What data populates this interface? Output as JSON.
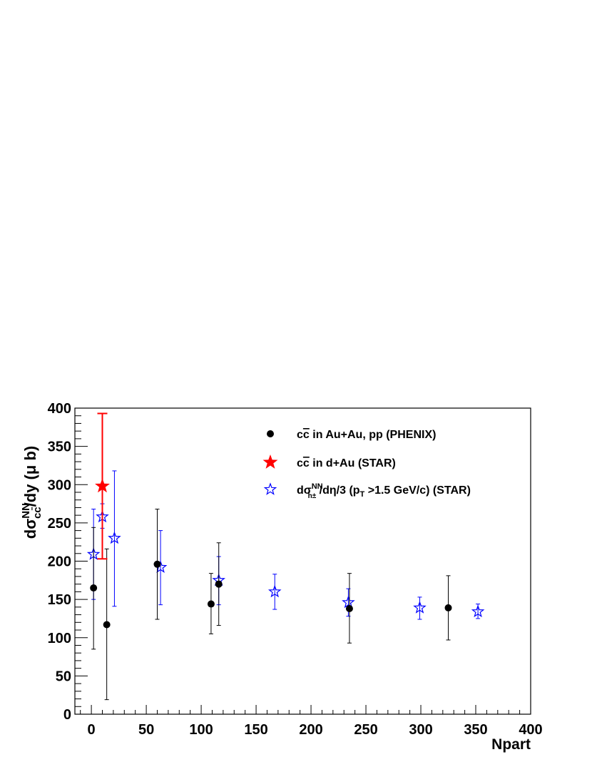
{
  "chart_data": {
    "type": "scatter",
    "xlabel": "Npart",
    "ylabel": "dσ^NN_cc̄/dy (μ b)",
    "ylabel_parts": {
      "prefix": "dσ",
      "sup": "NN",
      "sub": "cc̄",
      "suffix": "/dy (μ b)"
    },
    "xlim": [
      -15,
      400
    ],
    "ylim": [
      0,
      400
    ],
    "x_ticks": [
      0,
      50,
      100,
      150,
      200,
      250,
      300,
      350,
      400
    ],
    "y_ticks": [
      0,
      50,
      100,
      150,
      200,
      250,
      300,
      350,
      400
    ],
    "grid": false,
    "legend_position": "top-right",
    "series": [
      {
        "name": "cc̄ in Au+Au, pp (PHENIX)",
        "name_parts": {
          "c1": "c",
          "c2": "c",
          "rest": " in Au+Au, pp (PHENIX)"
        },
        "marker": "filled-circle",
        "color": "#000000",
        "points": [
          {
            "x": 2,
            "y": 165,
            "ylow": 85,
            "yhigh": 244
          },
          {
            "x": 14,
            "y": 117,
            "ylow": 19,
            "yhigh": 216
          },
          {
            "x": 60,
            "y": 196,
            "ylow": 124,
            "yhigh": 268
          },
          {
            "x": 109,
            "y": 144,
            "ylow": 105,
            "yhigh": 184
          },
          {
            "x": 116,
            "y": 170,
            "ylow": 116,
            "yhigh": 224
          },
          {
            "x": 235,
            "y": 138,
            "ylow": 93,
            "yhigh": 184
          },
          {
            "x": 325,
            "y": 139,
            "ylow": 97,
            "yhigh": 181
          }
        ]
      },
      {
        "name": "cc̄ in d+Au (STAR)",
        "name_parts": {
          "c1": "c",
          "c2": "c",
          "rest": " in d+Au (STAR)"
        },
        "marker": "filled-star",
        "color": "#ff0000",
        "points": [
          {
            "x": 10,
            "y": 298,
            "ylow": 203,
            "yhigh": 393
          }
        ]
      },
      {
        "name": "dσ^NN_h±/dη/3 (p_T >1.5 GeV/c) (STAR)",
        "name_parts": {
          "d": "dσ",
          "sup": "NN",
          "sub": "h±",
          "mid": " /dη/3 (p",
          "ptsub": "T",
          "rest": " >1.5 GeV/c) (STAR)"
        },
        "marker": "open-star",
        "color": "#0000ff",
        "points": [
          {
            "x": 2,
            "y": 209,
            "ylow": 150,
            "yhigh": 268
          },
          {
            "x": 10,
            "y": 258,
            "ylow": 243,
            "yhigh": 275
          },
          {
            "x": 21,
            "y": 230,
            "ylow": 141,
            "yhigh": 318
          },
          {
            "x": 63,
            "y": 192,
            "ylow": 143,
            "yhigh": 240
          },
          {
            "x": 116,
            "y": 175,
            "ylow": 143,
            "yhigh": 206
          },
          {
            "x": 167,
            "y": 160,
            "ylow": 137,
            "yhigh": 183
          },
          {
            "x": 234,
            "y": 146,
            "ylow": 128,
            "yhigh": 164
          },
          {
            "x": 299,
            "y": 139,
            "ylow": 124,
            "yhigh": 153
          },
          {
            "x": 352,
            "y": 134,
            "ylow": 125,
            "yhigh": 144
          }
        ]
      }
    ]
  }
}
